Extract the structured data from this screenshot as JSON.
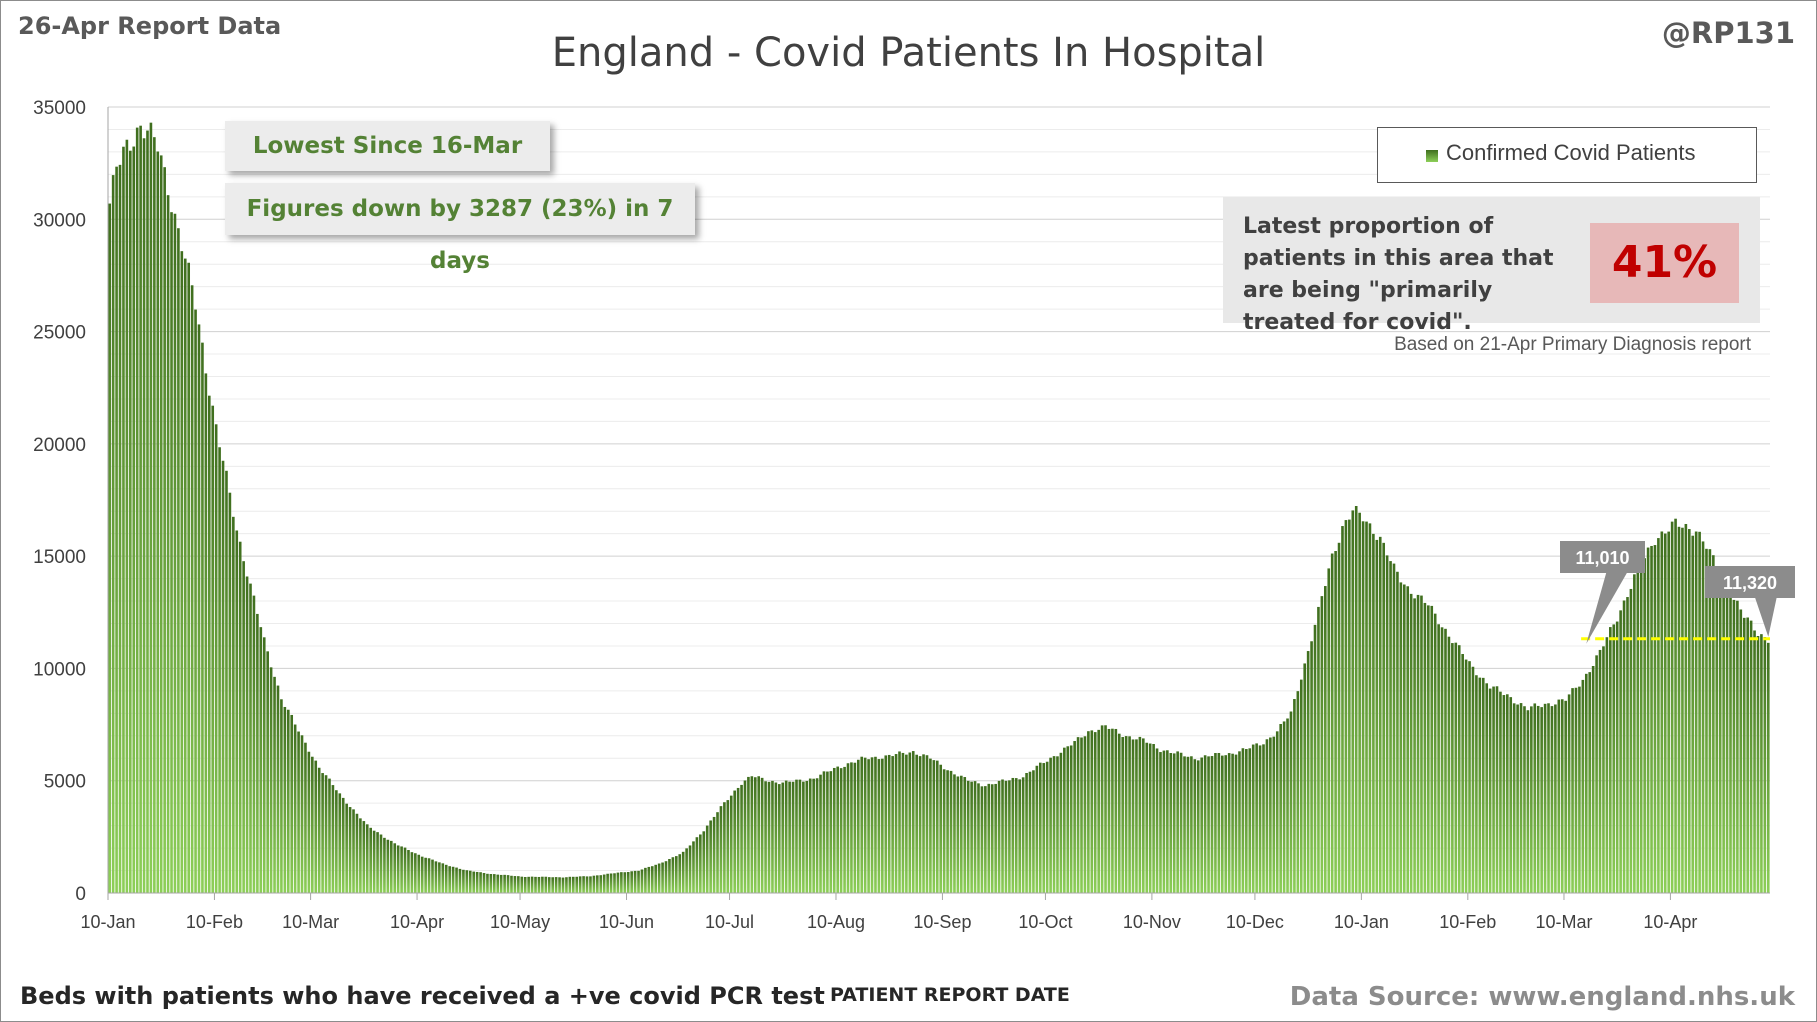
{
  "header": {
    "report_label": "26-Apr Report Data",
    "handle": "@RP131",
    "title": "England - Covid Patients In Hospital"
  },
  "footer": {
    "left_note": "Beds with patients who have received a +ve covid PCR test",
    "axis_caption": "PATIENT REPORT DATE",
    "source": "Data Source: www.england.nhs.uk"
  },
  "callouts": {
    "lowest": "Lowest Since 16-Mar",
    "change": "Figures down by 3287 (23%) in 7 days"
  },
  "proportion": {
    "text": "Latest proportion of patients in this area that are being \"primarily treated for covid\".",
    "value": "41%",
    "note": "Based on 21-Apr Primary Diagnosis report"
  },
  "colors": {
    "bar_top": "#3f6e1e",
    "bar_bottom": "#8dcf58",
    "reference_line": "#ffff00",
    "label_box": "#8c8c8c",
    "callout_text": "#548235",
    "pct_text": "#c00000"
  },
  "chart_data": {
    "type": "bar",
    "legend": [
      "Confirmed Covid Patients"
    ],
    "legend_position": "top-right",
    "grid": true,
    "ylim": [
      0,
      35000
    ],
    "yticks": [
      0,
      5000,
      10000,
      15000,
      20000,
      25000,
      30000,
      35000
    ],
    "xticks": [
      "10-Jan",
      "10-Feb",
      "10-Mar",
      "10-Apr",
      "10-May",
      "10-Jun",
      "10-Jul",
      "10-Aug",
      "10-Sep",
      "10-Oct",
      "10-Nov",
      "10-Dec",
      "10-Jan",
      "10-Feb",
      "10-Mar",
      "10-Apr"
    ],
    "x_start": "10-Jan",
    "x_end": "26-Apr",
    "series": [
      {
        "name": "Confirmed Covid Patients",
        "anchors": [
          [
            0,
            30700
          ],
          [
            2,
            32200
          ],
          [
            5,
            33200
          ],
          [
            8,
            34000
          ],
          [
            9,
            34200
          ],
          [
            11,
            33900
          ],
          [
            14,
            33200
          ],
          [
            17,
            31500
          ],
          [
            20,
            29500
          ],
          [
            25,
            26200
          ],
          [
            31,
            20700
          ],
          [
            37,
            16200
          ],
          [
            45,
            11200
          ],
          [
            50,
            8700
          ],
          [
            55,
            7200
          ],
          [
            61,
            5600
          ],
          [
            67,
            4400
          ],
          [
            75,
            3000
          ],
          [
            83,
            2200
          ],
          [
            90,
            1700
          ],
          [
            97,
            1300
          ],
          [
            104,
            1000
          ],
          [
            111,
            850
          ],
          [
            120,
            730
          ],
          [
            132,
            700
          ],
          [
            140,
            750
          ],
          [
            148,
            900
          ],
          [
            154,
            1000
          ],
          [
            160,
            1300
          ],
          [
            167,
            1800
          ],
          [
            173,
            2800
          ],
          [
            179,
            4000
          ],
          [
            184,
            4900
          ],
          [
            187,
            5200
          ],
          [
            192,
            5000
          ],
          [
            196,
            4900
          ],
          [
            205,
            5100
          ],
          [
            212,
            5600
          ],
          [
            220,
            6000
          ],
          [
            227,
            6100
          ],
          [
            234,
            6300
          ],
          [
            239,
            6000
          ],
          [
            244,
            5500
          ],
          [
            250,
            5000
          ],
          [
            255,
            4800
          ],
          [
            261,
            5000
          ],
          [
            266,
            5200
          ],
          [
            270,
            5600
          ],
          [
            276,
            6200
          ],
          [
            281,
            6700
          ],
          [
            285,
            7200
          ],
          [
            290,
            7400
          ],
          [
            296,
            7000
          ],
          [
            301,
            6800
          ],
          [
            306,
            6400
          ],
          [
            311,
            6200
          ],
          [
            316,
            6000
          ],
          [
            320,
            6100
          ],
          [
            326,
            6200
          ],
          [
            331,
            6400
          ],
          [
            336,
            6700
          ],
          [
            340,
            7200
          ],
          [
            344,
            8000
          ],
          [
            348,
            10200
          ],
          [
            352,
            12500
          ],
          [
            356,
            15000
          ],
          [
            359,
            16300
          ],
          [
            362,
            17000
          ],
          [
            365,
            16700
          ],
          [
            368,
            16200
          ],
          [
            370,
            15800
          ],
          [
            374,
            14400
          ],
          [
            378,
            13600
          ],
          [
            384,
            12800
          ],
          [
            390,
            11500
          ],
          [
            396,
            10200
          ],
          [
            402,
            9200
          ],
          [
            408,
            8700
          ],
          [
            413,
            8200
          ],
          [
            418,
            8400
          ],
          [
            424,
            8600
          ],
          [
            429,
            9500
          ],
          [
            434,
            10700
          ],
          [
            439,
            12300
          ],
          [
            444,
            14000
          ],
          [
            450,
            15800
          ],
          [
            456,
            16400
          ],
          [
            462,
            16200
          ],
          [
            465,
            15400
          ],
          [
            468,
            14500
          ],
          [
            472,
            13400
          ],
          [
            476,
            12300
          ],
          [
            480,
            11600
          ],
          [
            483,
            11320
          ]
        ],
        "annotations": [
          {
            "label": "11,010",
            "value": 11010
          },
          {
            "label": "11,320",
            "value": 11320
          }
        ]
      }
    ]
  }
}
